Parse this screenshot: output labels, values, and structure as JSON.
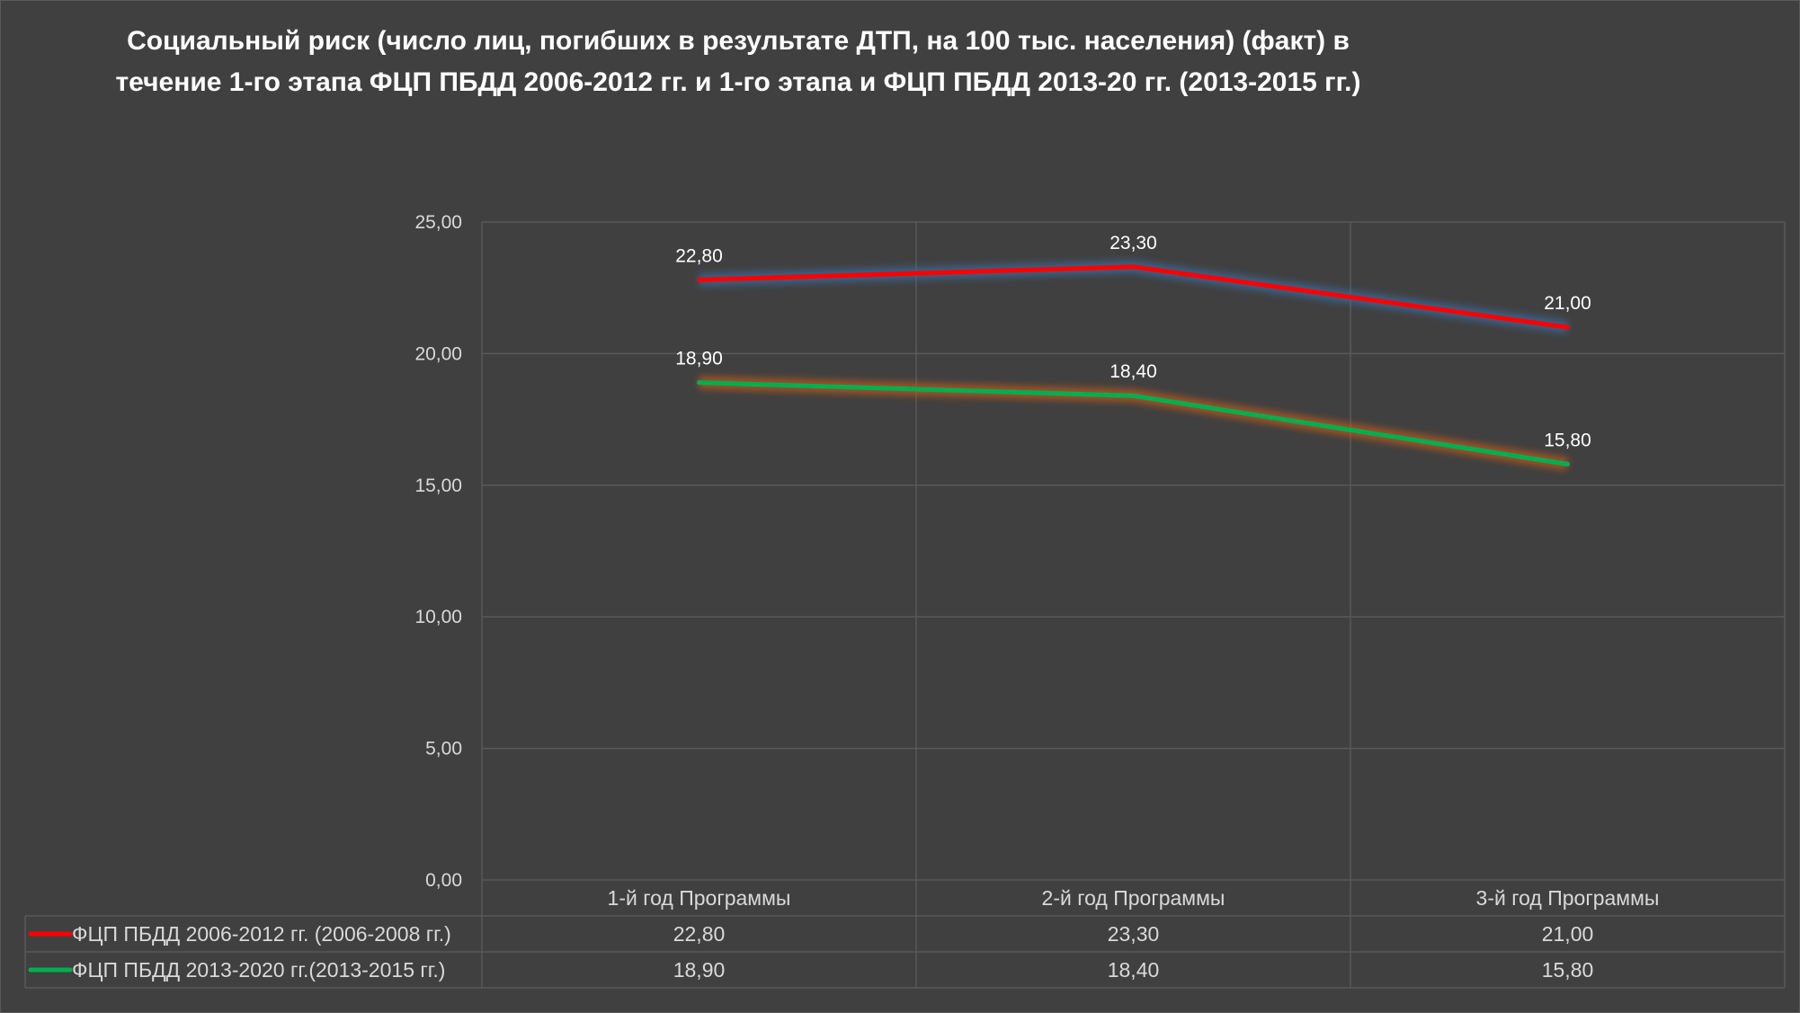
{
  "chart_data": {
    "type": "line",
    "title_lines": [
      "Социальный риск (число лиц, погибших в результате ДТП, на 100 тыс. населения)  (факт) в",
      "течение 1-го этапа ФЦП ПБДД 2006-2012 гг. и 1-го этапа и ФЦП ПБДД 2013-20 гг. (2013-2015 гг.)"
    ],
    "categories": [
      "1-й год Программы",
      "2-й год Программы",
      "3-й год Программы"
    ],
    "series": [
      {
        "name": "ФЦП ПБДД 2006-2012 гг. (2006-2008 гг.)",
        "values": [
          22.8,
          23.3,
          21.0
        ],
        "labels": [
          "22,80",
          "23,30",
          "21,00"
        ],
        "color": "#ff0000",
        "glow": "#3e6a9e"
      },
      {
        "name": "ФЦП ПБДД 2013-2020 гг.(2013-2015 гг.)",
        "values": [
          18.9,
          18.4,
          15.8
        ],
        "labels": [
          "18,90",
          "18,40",
          "15,80"
        ],
        "color": "#00b050",
        "glow": "#c05a1a"
      }
    ],
    "ylim": [
      0,
      25
    ],
    "yticks": [
      {
        "value": 0,
        "label": "0,00"
      },
      {
        "value": 5,
        "label": "5,00"
      },
      {
        "value": 10,
        "label": "10,00"
      },
      {
        "value": 15,
        "label": "15,00"
      },
      {
        "value": 20,
        "label": "20,00"
      },
      {
        "value": 25,
        "label": "25,00"
      }
    ],
    "grid": true,
    "data_table": true,
    "xlabel": "",
    "ylabel": ""
  },
  "colors": {
    "background": "#404040",
    "gridline": "#595959",
    "text": "#d9d9d9",
    "title": "#ffffff"
  }
}
